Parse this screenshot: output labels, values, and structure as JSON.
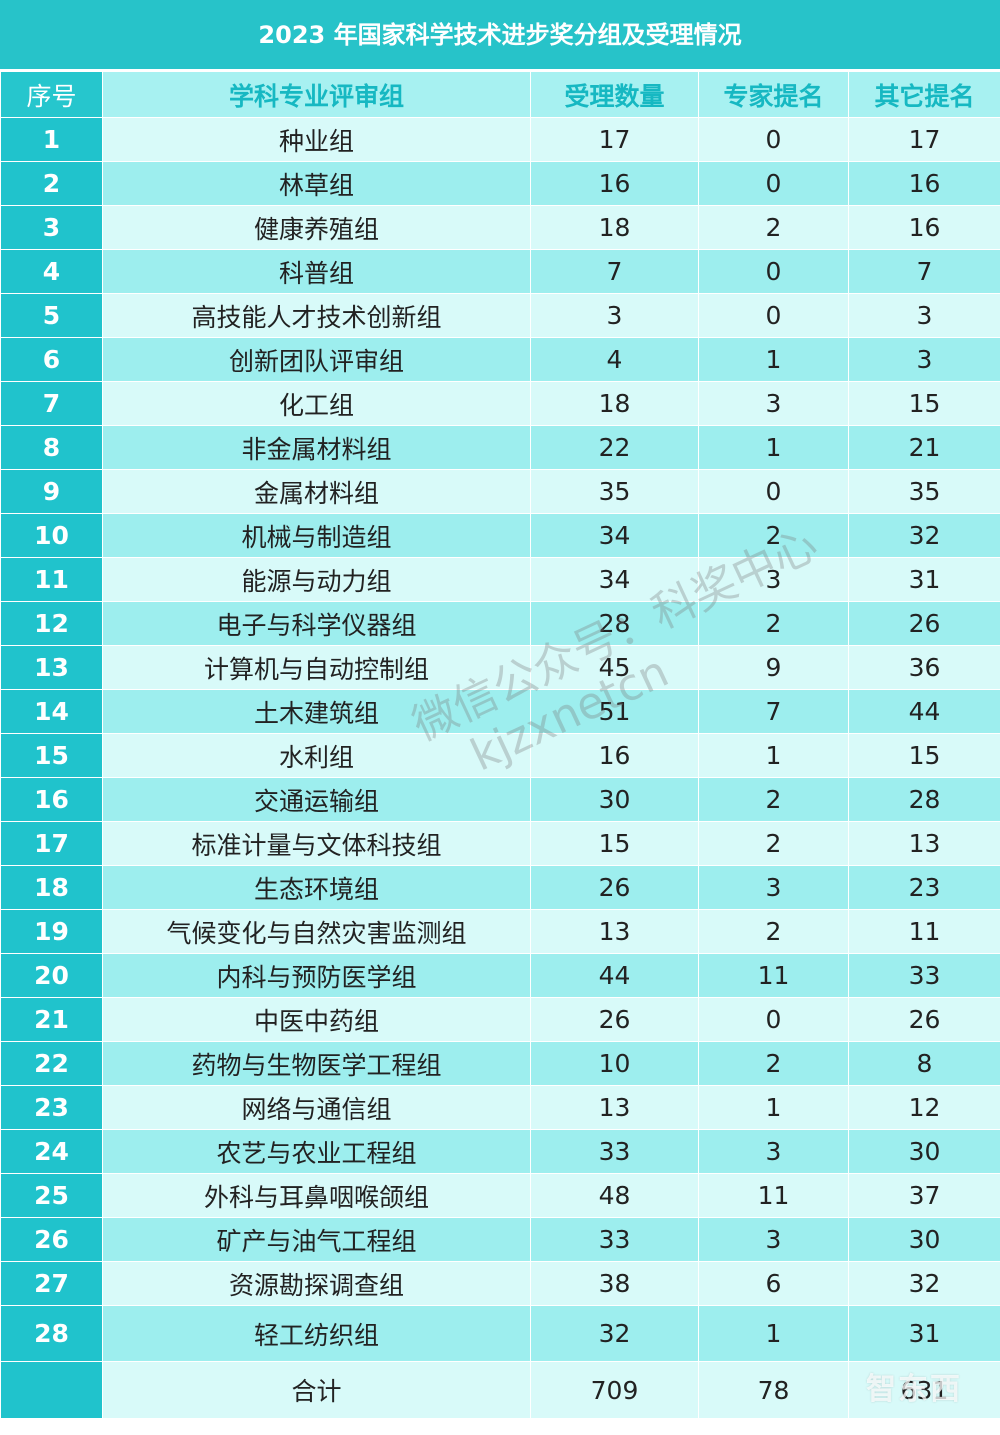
{
  "title": "2023 年国家科学技术进步奖分组及受理情况",
  "headers": [
    "序号",
    "学科专业评审组",
    "受理数量",
    "专家提名",
    "其它提名"
  ],
  "rows": [
    [
      "1",
      "种业组",
      "17",
      "0",
      "17"
    ],
    [
      "2",
      "林草组",
      "16",
      "0",
      "16"
    ],
    [
      "3",
      "健康养殖组",
      "18",
      "2",
      "16"
    ],
    [
      "4",
      "科普组",
      "7",
      "0",
      "7"
    ],
    [
      "5",
      "高技能人才技术创新组",
      "3",
      "0",
      "3"
    ],
    [
      "6",
      "创新团队评审组",
      "4",
      "1",
      "3"
    ],
    [
      "7",
      "化工组",
      "18",
      "3",
      "15"
    ],
    [
      "8",
      "非金属材料组",
      "22",
      "1",
      "21"
    ],
    [
      "9",
      "金属材料组",
      "35",
      "0",
      "35"
    ],
    [
      "10",
      "机械与制造组",
      "34",
      "2",
      "32"
    ],
    [
      "11",
      "能源与动力组",
      "34",
      "3",
      "31"
    ],
    [
      "12",
      "电子与科学仪器组",
      "28",
      "2",
      "26"
    ],
    [
      "13",
      "计算机与自动控制组",
      "45",
      "9",
      "36"
    ],
    [
      "14",
      "土木建筑组",
      "51",
      "7",
      "44"
    ],
    [
      "15",
      "水利组",
      "16",
      "1",
      "15"
    ],
    [
      "16",
      "交通运输组",
      "30",
      "2",
      "28"
    ],
    [
      "17",
      "标准计量与文体科技组",
      "15",
      "2",
      "13"
    ],
    [
      "18",
      "生态环境组",
      "26",
      "3",
      "23"
    ],
    [
      "19",
      "气候变化与自然灾害监测组",
      "13",
      "2",
      "11"
    ],
    [
      "20",
      "内科与预防医学组",
      "44",
      "11",
      "33"
    ],
    [
      "21",
      "中医中药组",
      "26",
      "0",
      "26"
    ],
    [
      "22",
      "药物与生物医学工程组",
      "10",
      "2",
      "8"
    ],
    [
      "23",
      "网络与通信组",
      "13",
      "1",
      "12"
    ],
    [
      "24",
      "农艺与农业工程组",
      "33",
      "3",
      "30"
    ],
    [
      "25",
      "外科与耳鼻咽喉颌组",
      "48",
      "11",
      "37"
    ],
    [
      "26",
      "矿产与油气工程组",
      "33",
      "3",
      "30"
    ],
    [
      "27",
      "资源勘探调查组",
      "38",
      "6",
      "32"
    ],
    [
      "28",
      "轻工纺织组",
      "32",
      "1",
      "31"
    ]
  ],
  "total": [
    "",
    "合计",
    "709",
    "78",
    "631"
  ],
  "watermark": {
    "line1": "微信公众号：科奖中心",
    "line2": "kjzxnetcn"
  },
  "corner_logo": "智东西",
  "colors": {
    "header_bar": "#27c3c9",
    "index_column": "#20c3cc",
    "header_row": "#a7f1f1",
    "row_light": "#d8faf9",
    "row_dark": "#9deeee"
  }
}
